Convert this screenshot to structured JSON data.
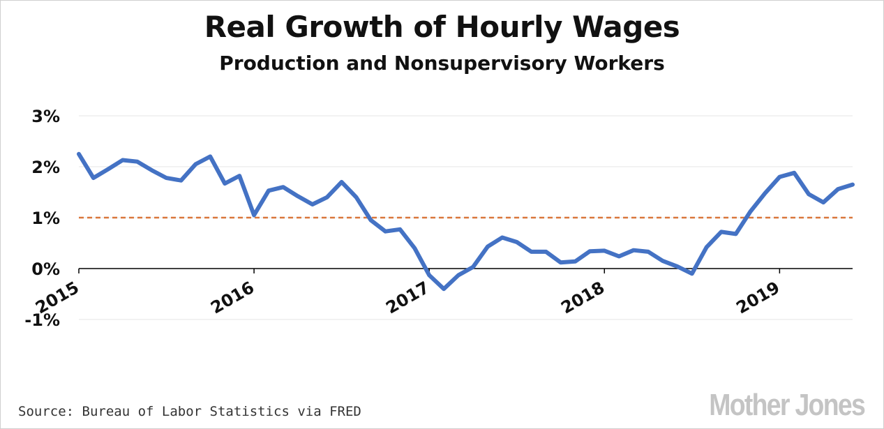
{
  "chart_data": {
    "type": "line",
    "title": "Real Growth of Hourly Wages",
    "subtitle": "Production and Nonsupervisory Workers",
    "xlabel": "",
    "ylabel": "",
    "y_ticks": [
      "3%",
      "2%",
      "1%",
      "0%",
      "-1%"
    ],
    "y_tick_values": [
      3,
      2,
      1,
      0,
      -1
    ],
    "ylim": [
      -1,
      3
    ],
    "x_ticks": [
      "2015",
      "2016",
      "2017",
      "2018",
      "2019"
    ],
    "x_tick_values": [
      2015,
      2016,
      2017,
      2018,
      2019
    ],
    "xlim": [
      2015,
      2019.4167
    ],
    "reference_line": {
      "value": 1.0,
      "style": "dashed",
      "color": "#d9773b"
    },
    "series": [
      {
        "color": "#4472c4",
        "x": [
          2015.0,
          2015.0833,
          2015.1667,
          2015.25,
          2015.3333,
          2015.4167,
          2015.5,
          2015.5833,
          2015.6667,
          2015.75,
          2015.8333,
          2015.9167,
          2016.0,
          2016.0833,
          2016.1667,
          2016.25,
          2016.3333,
          2016.4167,
          2016.5,
          2016.5833,
          2016.6667,
          2016.75,
          2016.8333,
          2016.9167,
          2017.0,
          2017.0833,
          2017.1667,
          2017.25,
          2017.3333,
          2017.4167,
          2017.5,
          2017.5833,
          2017.6667,
          2017.75,
          2017.8333,
          2017.9167,
          2018.0,
          2018.0833,
          2018.1667,
          2018.25,
          2018.3333,
          2018.4167,
          2018.5,
          2018.5833,
          2018.6667,
          2018.75,
          2018.8333,
          2018.9167,
          2019.0,
          2019.0833,
          2019.1667,
          2019.25,
          2019.3333,
          2019.4167
        ],
        "values": [
          2.25,
          1.78,
          1.95,
          2.13,
          2.1,
          1.93,
          1.78,
          1.73,
          2.05,
          2.2,
          1.67,
          1.82,
          1.05,
          1.53,
          1.6,
          1.42,
          1.26,
          1.4,
          1.7,
          1.4,
          0.95,
          0.73,
          0.77,
          0.4,
          -0.13,
          -0.4,
          -0.13,
          0.03,
          0.43,
          0.61,
          0.52,
          0.33,
          0.33,
          0.12,
          0.14,
          0.34,
          0.35,
          0.24,
          0.36,
          0.33,
          0.15,
          0.04,
          -0.1,
          0.42,
          0.72,
          0.68,
          1.12,
          1.48,
          1.8,
          1.88,
          1.46,
          1.3,
          1.56,
          1.65
        ]
      }
    ],
    "grid": true,
    "gridline_color": "#e6e6e6"
  },
  "footer": {
    "source": "Source: Bureau of Labor Statistics via FRED",
    "brand": "Mother Jones"
  }
}
